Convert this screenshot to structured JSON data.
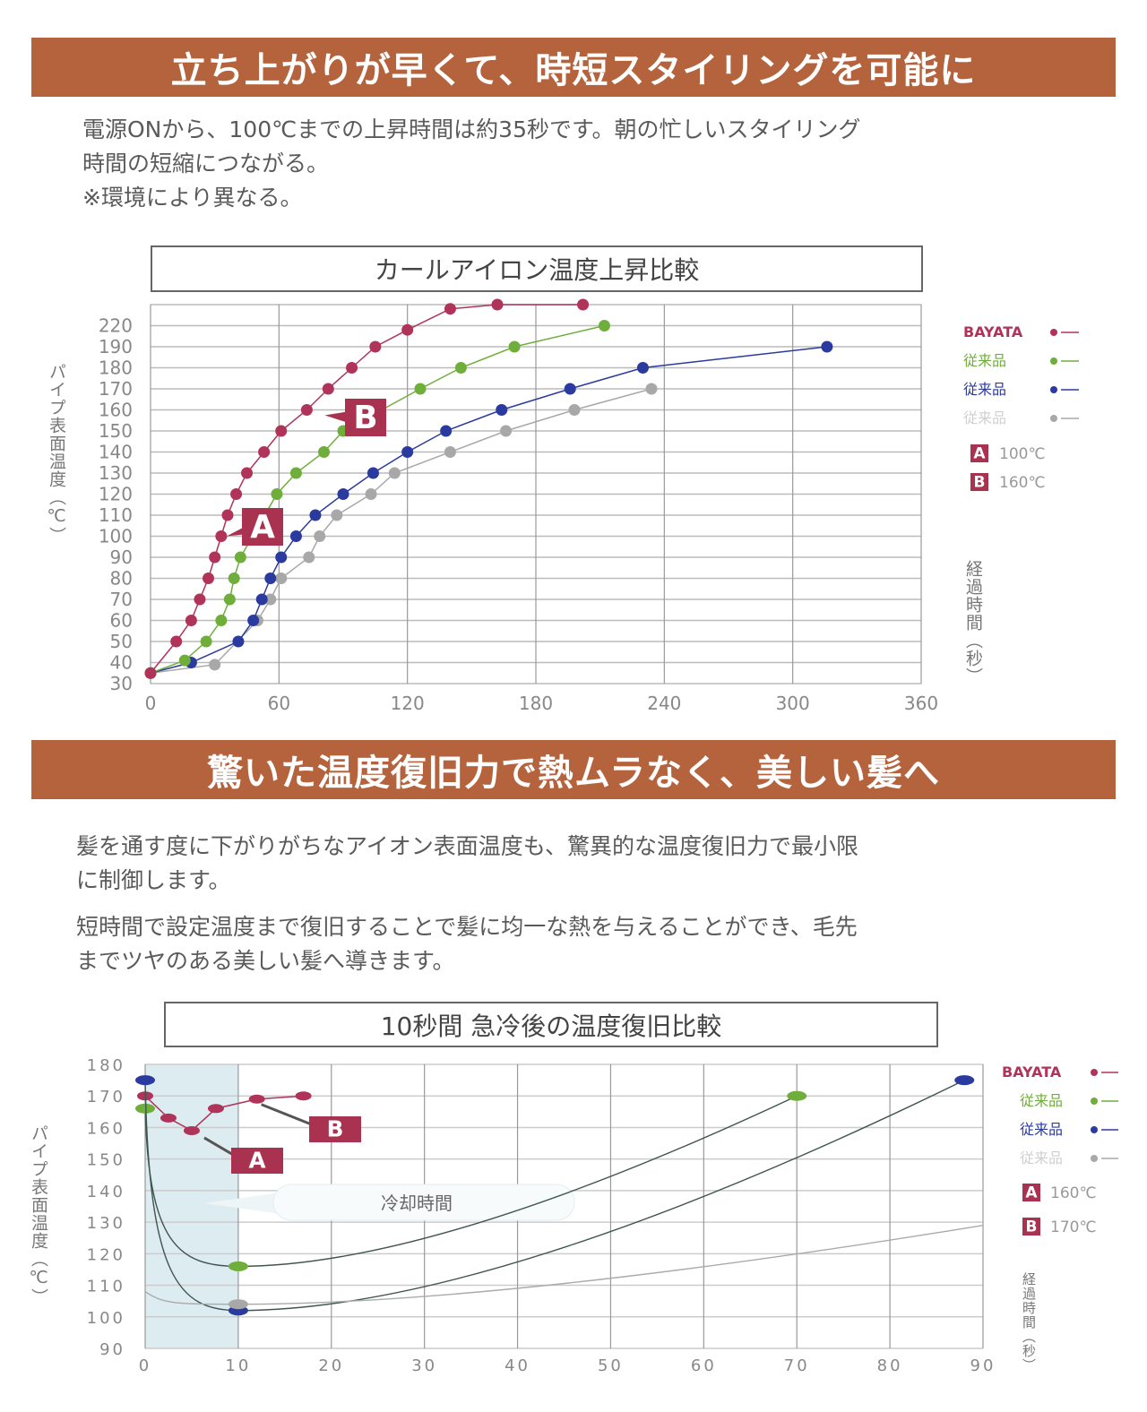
{
  "section1": {
    "heading": "立ち上がりが早くて、時短スタイリングを可能に",
    "body_lines": [
      "電源ONから、100℃までの上昇時間は約35秒です。朝の忙しいスタイリング",
      "時間の短縮につながる。",
      "※環境により異なる。"
    ]
  },
  "section2": {
    "heading": "驚いた温度復旧力で熱ムラなく、美しい髪へ",
    "body_lines": [
      "髪を通す度に下がりがちなアイオン表面温度も、驚異的な温度復旧力で最小限",
      "に制御します。",
      "短時間で設定温度まで復旧することで髪に均一な熱を与えることができ、毛先",
      "までツヤのある美しい髪へ導きます。"
    ]
  },
  "colors": {
    "banner": "#b5633d",
    "bayata": "#b0335a",
    "green": "#6fae3a",
    "blue": "#2b3a9e",
    "gray": "#a8a8a8",
    "cooling_band": "#dcecf1"
  },
  "chart_data": [
    {
      "type": "line",
      "title": "カールアイロン温度上昇比較",
      "ylabel": "パイプ表面温度（℃）",
      "xlabel": "経過時間（秒）",
      "xlim": [
        0,
        360
      ],
      "x_ticks": [
        "0",
        "60",
        "120",
        "180",
        "240",
        "300",
        "360"
      ],
      "y_ticks": [
        "30",
        "40",
        "50",
        "60",
        "70",
        "80",
        "90",
        "100",
        "110",
        "120",
        "130",
        "140",
        "150",
        "160",
        "170",
        "180",
        "190",
        "220"
      ],
      "grid": true,
      "legend_position": "right",
      "series": [
        {
          "name": "BAYATA",
          "color": "#b0335a",
          "points": [
            [
              0,
              35
            ],
            [
              12,
              50
            ],
            [
              19,
              60
            ],
            [
              23,
              70
            ],
            [
              27,
              80
            ],
            [
              30,
              90
            ],
            [
              33,
              100
            ],
            [
              36,
              110
            ],
            [
              40,
              120
            ],
            [
              45,
              130
            ],
            [
              53,
              140
            ],
            [
              61,
              150
            ],
            [
              73,
              160
            ],
            [
              83,
              170
            ],
            [
              94,
              180
            ],
            [
              105,
              190
            ],
            [
              120,
              214
            ],
            [
              140,
              228
            ],
            [
              162,
              230
            ],
            [
              202,
              230
            ]
          ]
        },
        {
          "name": "従来品",
          "color": "#6fae3a",
          "points": [
            [
              0,
              35
            ],
            [
              16,
              41
            ],
            [
              26,
              50
            ],
            [
              33,
              60
            ],
            [
              37,
              70
            ],
            [
              39,
              80
            ],
            [
              42,
              90
            ],
            [
              59,
              120
            ],
            [
              68,
              130
            ],
            [
              81,
              140
            ],
            [
              90,
              150
            ],
            [
              126,
              170
            ],
            [
              145,
              180
            ],
            [
              170,
              190
            ],
            [
              212,
              220
            ]
          ]
        },
        {
          "name": "従来品",
          "color": "#2b3a9e",
          "points": [
            [
              0,
              35
            ],
            [
              19,
              40
            ],
            [
              41,
              50
            ],
            [
              48,
              60
            ],
            [
              52,
              70
            ],
            [
              56,
              80
            ],
            [
              61,
              90
            ],
            [
              68,
              100
            ],
            [
              77,
              110
            ],
            [
              90,
              120
            ],
            [
              104,
              130
            ],
            [
              120,
              140
            ],
            [
              138,
              150
            ],
            [
              164,
              160
            ],
            [
              196,
              170
            ],
            [
              230,
              180
            ],
            [
              316,
              190
            ]
          ]
        },
        {
          "name": "従来品",
          "color": "#a8a8a8",
          "points": [
            [
              0,
              35
            ],
            [
              30,
              39
            ],
            [
              50,
              60
            ],
            [
              56,
              70
            ],
            [
              61,
              80
            ],
            [
              74,
              90
            ],
            [
              79,
              100
            ],
            [
              87,
              110
            ],
            [
              103,
              120
            ],
            [
              114,
              130
            ],
            [
              140,
              140
            ],
            [
              166,
              150
            ],
            [
              198,
              160
            ],
            [
              234,
              170
            ]
          ]
        }
      ],
      "annotations": [
        {
          "label": "A",
          "x": 33,
          "y": 100,
          "text": "100℃"
        },
        {
          "label": "B",
          "x": 73,
          "y": 160,
          "text": "160℃"
        }
      ]
    },
    {
      "type": "line",
      "title": "10秒間 急冷後の温度復旧比較",
      "ylabel": "パイプ表面温度（℃）",
      "xlabel": "経過時間（秒）",
      "xlim": [
        0,
        90
      ],
      "ylim": [
        90,
        180
      ],
      "x_ticks": [
        "0",
        "10",
        "20",
        "30",
        "40",
        "50",
        "60",
        "70",
        "80",
        "90"
      ],
      "y_ticks": [
        "90",
        "100",
        "110",
        "120",
        "130",
        "140",
        "150",
        "160",
        "170",
        "180"
      ],
      "grid": true,
      "legend_position": "right",
      "shaded_region": {
        "x": [
          0,
          10
        ],
        "label": "冷却時間"
      },
      "series": [
        {
          "name": "BAYATA",
          "color": "#b0335a",
          "points": [
            [
              0,
              170
            ],
            [
              2.5,
              163
            ],
            [
              5,
              159
            ],
            [
              7.6,
              166
            ],
            [
              12,
              169
            ],
            [
              17,
              170
            ]
          ]
        },
        {
          "name": "従来品",
          "color": "#6fae3a",
          "points": [
            [
              0,
              166
            ],
            [
              10,
              116
            ],
            [
              70,
              170
            ]
          ]
        },
        {
          "name": "従来品",
          "color": "#2b3a9e",
          "points": [
            [
              0,
              175
            ],
            [
              10,
              102
            ],
            [
              88,
              175
            ]
          ]
        },
        {
          "name": "従来品",
          "color": "#a8a8a8",
          "points": [
            [
              0,
              108
            ],
            [
              10,
              104
            ],
            [
              90,
              129
            ]
          ]
        }
      ],
      "annotations": [
        {
          "label": "A",
          "x": 5,
          "y": 159,
          "text": "160℃"
        },
        {
          "label": "B",
          "x": 12,
          "y": 169,
          "text": "170℃"
        }
      ]
    }
  ]
}
